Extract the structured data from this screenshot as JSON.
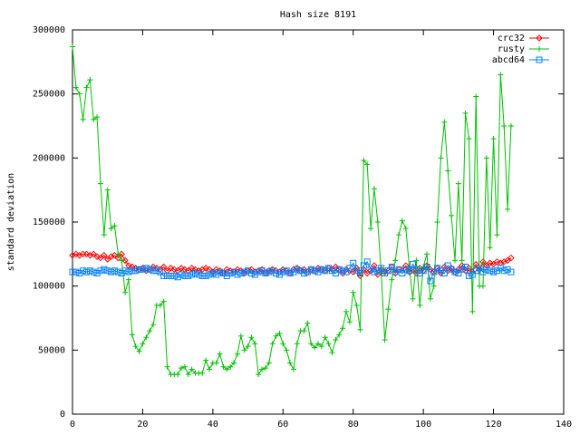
{
  "chart_data": {
    "type": "line",
    "title": "Hash size 8191",
    "y_label": "standard deviation",
    "xlim": [
      0,
      140
    ],
    "xticks": [
      0,
      20,
      40,
      60,
      80,
      100,
      120,
      140
    ],
    "ylim": [
      0,
      300000
    ],
    "yticks": [
      0,
      50000,
      100000,
      150000,
      200000,
      250000,
      300000
    ],
    "legend": "top-right",
    "x": [
      0,
      1,
      2,
      3,
      4,
      5,
      6,
      7,
      8,
      9,
      10,
      11,
      12,
      13,
      14,
      15,
      16,
      17,
      18,
      19,
      20,
      21,
      22,
      23,
      24,
      25,
      26,
      27,
      28,
      29,
      30,
      31,
      32,
      33,
      34,
      35,
      36,
      37,
      38,
      39,
      40,
      41,
      42,
      43,
      44,
      45,
      46,
      47,
      48,
      49,
      50,
      51,
      52,
      53,
      54,
      55,
      56,
      57,
      58,
      59,
      60,
      61,
      62,
      63,
      64,
      65,
      66,
      67,
      68,
      69,
      70,
      71,
      72,
      73,
      74,
      75,
      76,
      77,
      78,
      79,
      80,
      81,
      82,
      83,
      84,
      85,
      86,
      87,
      88,
      89,
      90,
      91,
      92,
      93,
      94,
      95,
      96,
      97,
      98,
      99,
      100,
      101,
      102,
      103,
      104,
      105,
      106,
      107,
      108,
      109,
      110,
      111,
      112,
      113,
      114,
      115,
      116,
      117,
      118,
      119,
      120,
      121,
      122,
      123,
      124,
      125
    ],
    "series": [
      {
        "name": "crc32",
        "color": "#ff0000",
        "marker": "diamond",
        "values": [
          124000,
          125000,
          124000,
          125000,
          125000,
          124000,
          125000,
          123000,
          122000,
          124000,
          121000,
          123000,
          124000,
          122000,
          125000,
          120000,
          116000,
          115000,
          114000,
          113000,
          114000,
          112000,
          113000,
          115000,
          114000,
          113000,
          115000,
          112000,
          114000,
          113000,
          112000,
          114000,
          113000,
          112000,
          114000,
          113000,
          112000,
          113000,
          114000,
          113000,
          111000,
          113000,
          112000,
          110000,
          113000,
          112000,
          111000,
          113000,
          112000,
          110000,
          112000,
          113000,
          111000,
          112000,
          113000,
          110000,
          112000,
          113000,
          112000,
          111000,
          113000,
          112000,
          110000,
          113000,
          114000,
          112000,
          113000,
          111000,
          113000,
          112000,
          114000,
          113000,
          112000,
          114000,
          113000,
          115000,
          113000,
          110000,
          113000,
          112000,
          111000,
          114000,
          108000,
          113000,
          110000,
          112000,
          116000,
          109000,
          113000,
          111000,
          112000,
          115000,
          110000,
          113000,
          112000,
          116000,
          111000,
          113000,
          110000,
          114000,
          112000,
          116000,
          113000,
          111000,
          114000,
          110000,
          115000,
          112000,
          114000,
          111000,
          113000,
          116000,
          112000,
          114000,
          111000,
          117000,
          113000,
          119000,
          116000,
          118000,
          117000,
          119000,
          118000,
          119000,
          120000,
          122000
        ]
      },
      {
        "name": "rusty",
        "color": "#00c000",
        "marker": "plus",
        "values": [
          287000,
          255000,
          250000,
          230000,
          255000,
          261000,
          230000,
          232000,
          180000,
          140000,
          175000,
          145000,
          147000,
          125000,
          120000,
          95000,
          105000,
          62000,
          53000,
          49000,
          55000,
          60000,
          65000,
          70000,
          85000,
          85000,
          88000,
          37000,
          31000,
          31000,
          31000,
          36000,
          37000,
          31000,
          35000,
          32000,
          32000,
          32000,
          42000,
          35000,
          40000,
          40000,
          47000,
          37000,
          35000,
          37000,
          40000,
          47000,
          61000,
          50000,
          53000,
          60000,
          55000,
          31000,
          35000,
          36000,
          40000,
          55000,
          61000,
          63000,
          55000,
          50000,
          40000,
          35000,
          55000,
          65000,
          65000,
          71000,
          55000,
          52000,
          55000,
          53000,
          60000,
          55000,
          48000,
          58000,
          62000,
          67000,
          80000,
          72000,
          95000,
          85000,
          66000,
          198000,
          195000,
          145000,
          176000,
          150000,
          110000,
          58000,
          82000,
          105000,
          120000,
          140000,
          151000,
          145000,
          115000,
          90000,
          120000,
          85000,
          115000,
          125000,
          90000,
          100000,
          150000,
          200000,
          228000,
          190000,
          155000,
          120000,
          180000,
          120000,
          235000,
          215000,
          80000,
          248000,
          100000,
          100000,
          200000,
          130000,
          215000,
          140000,
          265000,
          225000,
          160000,
          225000
        ]
      },
      {
        "name": "abcd64",
        "color": "#0080ff",
        "marker": "square",
        "values": [
          111000,
          111000,
          110000,
          112000,
          111000,
          112000,
          111000,
          110000,
          112000,
          113000,
          112000,
          111000,
          112000,
          111000,
          110000,
          112000,
          111000,
          112000,
          112000,
          113000,
          113000,
          114000,
          113000,
          112000,
          112000,
          111000,
          108000,
          108000,
          108000,
          108000,
          107000,
          109000,
          108000,
          108000,
          109000,
          110000,
          109000,
          108000,
          108000,
          109000,
          110000,
          109000,
          111000,
          110000,
          108000,
          110000,
          111000,
          109000,
          110000,
          111000,
          112000,
          110000,
          109000,
          111000,
          112000,
          110000,
          111000,
          112000,
          110000,
          109000,
          111000,
          112000,
          110000,
          111000,
          113000,
          112000,
          110000,
          111000,
          113000,
          112000,
          111000,
          113000,
          112000,
          114000,
          112000,
          110000,
          113000,
          112000,
          111000,
          114000,
          118000,
          112000,
          110000,
          116000,
          119000,
          113000,
          111000,
          112000,
          114000,
          110000,
          112000,
          115000,
          111000,
          113000,
          110000,
          113000,
          112000,
          117000,
          113000,
          110000,
          112000,
          115000,
          104000,
          111000,
          114000,
          112000,
          110000,
          116000,
          113000,
          111000,
          110000,
          113000,
          115000,
          108000,
          109000,
          112000,
          114000,
          111000,
          113000,
          112000,
          111000,
          112000,
          114000,
          112000,
          113000,
          111000
        ]
      }
    ]
  }
}
